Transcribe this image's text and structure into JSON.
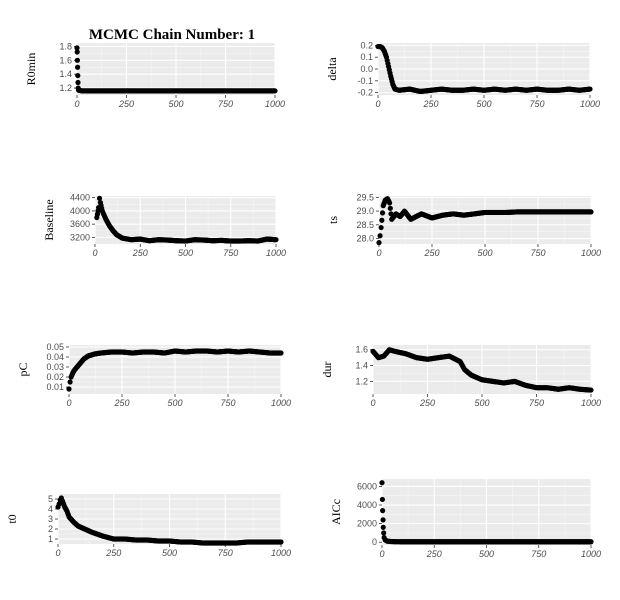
{
  "title": "MCMC Chain Number: 1",
  "chart_data": [
    {
      "type": "scatter",
      "ylabel": "R0min",
      "xlim": [
        0,
        1000
      ],
      "ylim": [
        1.1,
        1.85
      ],
      "xticks": [
        0,
        250,
        500,
        750,
        1000
      ],
      "yticks": [
        1.2,
        1.4,
        1.6,
        1.8
      ],
      "ytick_labels": [
        "1.2",
        "1.4",
        "1.6",
        "1.8"
      ],
      "grid": true,
      "points": [
        [
          0,
          1.78
        ],
        [
          1,
          1.72
        ],
        [
          2,
          1.6
        ],
        [
          3,
          1.5
        ],
        [
          4,
          1.38
        ],
        [
          5,
          1.28
        ],
        [
          6,
          1.2
        ],
        [
          8,
          1.17
        ],
        [
          10,
          1.17
        ],
        [
          25,
          1.16
        ],
        [
          50,
          1.16
        ],
        [
          100,
          1.16
        ],
        [
          150,
          1.16
        ],
        [
          200,
          1.16
        ],
        [
          250,
          1.16
        ],
        [
          300,
          1.16
        ],
        [
          350,
          1.16
        ],
        [
          400,
          1.16
        ],
        [
          450,
          1.16
        ],
        [
          500,
          1.16
        ],
        [
          550,
          1.16
        ],
        [
          600,
          1.16
        ],
        [
          650,
          1.16
        ],
        [
          700,
          1.16
        ],
        [
          750,
          1.16
        ],
        [
          800,
          1.16
        ],
        [
          850,
          1.16
        ],
        [
          900,
          1.16
        ],
        [
          950,
          1.16
        ],
        [
          1000,
          1.16
        ]
      ]
    },
    {
      "type": "scatter",
      "ylabel": "delta",
      "xlim": [
        0,
        1000
      ],
      "ylim": [
        -0.22,
        0.22
      ],
      "xticks": [
        0,
        250,
        500,
        750,
        1000
      ],
      "yticks": [
        -0.2,
        -0.1,
        0.0,
        0.1,
        0.2
      ],
      "ytick_labels": [
        "-0.2",
        "-0.1",
        "0.0",
        "0.1",
        "0.2"
      ],
      "grid": true,
      "points": [
        [
          0,
          0.19
        ],
        [
          10,
          0.19
        ],
        [
          20,
          0.18
        ],
        [
          30,
          0.15
        ],
        [
          40,
          0.1
        ],
        [
          50,
          0.02
        ],
        [
          60,
          -0.06
        ],
        [
          70,
          -0.13
        ],
        [
          80,
          -0.17
        ],
        [
          100,
          -0.18
        ],
        [
          150,
          -0.17
        ],
        [
          200,
          -0.19
        ],
        [
          250,
          -0.18
        ],
        [
          300,
          -0.17
        ],
        [
          350,
          -0.18
        ],
        [
          400,
          -0.18
        ],
        [
          450,
          -0.17
        ],
        [
          500,
          -0.18
        ],
        [
          550,
          -0.17
        ],
        [
          600,
          -0.18
        ],
        [
          650,
          -0.17
        ],
        [
          700,
          -0.18
        ],
        [
          750,
          -0.17
        ],
        [
          800,
          -0.18
        ],
        [
          850,
          -0.18
        ],
        [
          900,
          -0.17
        ],
        [
          950,
          -0.18
        ],
        [
          1000,
          -0.17
        ]
      ]
    },
    {
      "type": "scatter",
      "ylabel": "Baseline",
      "xlim": [
        0,
        1000
      ],
      "ylim": [
        3000,
        4450
      ],
      "xticks": [
        0,
        250,
        500,
        750,
        1000
      ],
      "yticks": [
        3200,
        3600,
        4000,
        4400
      ],
      "ytick_labels": [
        "3200",
        "3600",
        "4000",
        "4400"
      ],
      "grid": true,
      "points": [
        [
          10,
          3800
        ],
        [
          20,
          4100
        ],
        [
          25,
          4380
        ],
        [
          30,
          4250
        ],
        [
          40,
          4000
        ],
        [
          60,
          3750
        ],
        [
          80,
          3550
        ],
        [
          100,
          3400
        ],
        [
          120,
          3280
        ],
        [
          150,
          3180
        ],
        [
          200,
          3130
        ],
        [
          250,
          3150
        ],
        [
          300,
          3100
        ],
        [
          350,
          3130
        ],
        [
          400,
          3120
        ],
        [
          450,
          3100
        ],
        [
          500,
          3090
        ],
        [
          550,
          3130
        ],
        [
          600,
          3120
        ],
        [
          650,
          3100
        ],
        [
          700,
          3110
        ],
        [
          750,
          3090
        ],
        [
          800,
          3090
        ],
        [
          850,
          3100
        ],
        [
          900,
          3090
        ],
        [
          950,
          3150
        ],
        [
          1000,
          3130
        ]
      ]
    },
    {
      "type": "scatter",
      "ylabel": "ts",
      "xlim": [
        0,
        1000
      ],
      "ylim": [
        27.8,
        29.55
      ],
      "xticks": [
        0,
        250,
        500,
        750,
        1000
      ],
      "yticks": [
        28.0,
        28.5,
        29.0,
        29.5
      ],
      "ytick_labels": [
        "28.0",
        "28.5",
        "29.0",
        "29.5"
      ],
      "grid": true,
      "points": [
        [
          0,
          27.85
        ],
        [
          5,
          28.1
        ],
        [
          10,
          28.4
        ],
        [
          20,
          29.2
        ],
        [
          30,
          29.4
        ],
        [
          40,
          29.45
        ],
        [
          50,
          29.3
        ],
        [
          60,
          28.7
        ],
        [
          80,
          28.9
        ],
        [
          100,
          28.8
        ],
        [
          120,
          29.0
        ],
        [
          150,
          28.7
        ],
        [
          200,
          28.9
        ],
        [
          250,
          28.75
        ],
        [
          300,
          28.85
        ],
        [
          350,
          28.9
        ],
        [
          400,
          28.85
        ],
        [
          450,
          28.9
        ],
        [
          500,
          28.95
        ],
        [
          550,
          28.95
        ],
        [
          600,
          28.95
        ],
        [
          650,
          28.97
        ],
        [
          700,
          28.97
        ],
        [
          750,
          28.97
        ],
        [
          800,
          28.97
        ],
        [
          850,
          28.97
        ],
        [
          900,
          28.97
        ],
        [
          950,
          28.97
        ],
        [
          1000,
          28.97
        ]
      ]
    },
    {
      "type": "scatter",
      "ylabel": "pC",
      "xlim": [
        0,
        1000
      ],
      "ylim": [
        0.003,
        0.052
      ],
      "xticks": [
        0,
        250,
        500,
        750,
        1000
      ],
      "yticks": [
        0.01,
        0.02,
        0.03,
        0.04,
        0.05
      ],
      "ytick_labels": [
        "0.01",
        "0.02",
        "0.03",
        "0.04",
        "0.05"
      ],
      "grid": true,
      "points": [
        [
          0,
          0.008
        ],
        [
          5,
          0.015
        ],
        [
          10,
          0.02
        ],
        [
          20,
          0.025
        ],
        [
          30,
          0.028
        ],
        [
          50,
          0.033
        ],
        [
          70,
          0.038
        ],
        [
          90,
          0.041
        ],
        [
          120,
          0.043
        ],
        [
          150,
          0.044
        ],
        [
          200,
          0.045
        ],
        [
          250,
          0.045
        ],
        [
          300,
          0.044
        ],
        [
          350,
          0.045
        ],
        [
          400,
          0.045
        ],
        [
          450,
          0.044
        ],
        [
          500,
          0.046
        ],
        [
          550,
          0.045
        ],
        [
          600,
          0.046
        ],
        [
          650,
          0.046
        ],
        [
          700,
          0.045
        ],
        [
          750,
          0.046
        ],
        [
          800,
          0.045
        ],
        [
          850,
          0.046
        ],
        [
          900,
          0.045
        ],
        [
          950,
          0.044
        ],
        [
          1000,
          0.044
        ]
      ]
    },
    {
      "type": "scatter",
      "ylabel": "dur",
      "xlim": [
        0,
        1000
      ],
      "ylim": [
        1.04,
        1.66
      ],
      "xticks": [
        0,
        250,
        500,
        750,
        1000
      ],
      "yticks": [
        1.2,
        1.4,
        1.6
      ],
      "ytick_labels": [
        "1.2",
        "1.4",
        "1.6"
      ],
      "grid": true,
      "points": [
        [
          0,
          1.58
        ],
        [
          25,
          1.5
        ],
        [
          50,
          1.52
        ],
        [
          75,
          1.6
        ],
        [
          100,
          1.58
        ],
        [
          150,
          1.55
        ],
        [
          200,
          1.5
        ],
        [
          250,
          1.48
        ],
        [
          300,
          1.5
        ],
        [
          350,
          1.52
        ],
        [
          400,
          1.45
        ],
        [
          420,
          1.35
        ],
        [
          450,
          1.28
        ],
        [
          500,
          1.22
        ],
        [
          550,
          1.2
        ],
        [
          600,
          1.18
        ],
        [
          650,
          1.2
        ],
        [
          700,
          1.15
        ],
        [
          750,
          1.12
        ],
        [
          800,
          1.12
        ],
        [
          850,
          1.1
        ],
        [
          900,
          1.12
        ],
        [
          950,
          1.1
        ],
        [
          1000,
          1.09
        ]
      ]
    },
    {
      "type": "scatter",
      "ylabel": "t0",
      "xlim": [
        0,
        1000
      ],
      "ylim": [
        0.5,
        5.5
      ],
      "xticks": [
        0,
        250,
        500,
        750,
        1000
      ],
      "yticks": [
        1,
        2,
        3,
        4,
        5
      ],
      "ytick_labels": [
        "1",
        "2",
        "3",
        "4",
        "5"
      ],
      "grid": true,
      "points": [
        [
          0,
          4.2
        ],
        [
          5,
          4.5
        ],
        [
          10,
          4.9
        ],
        [
          15,
          5.1
        ],
        [
          20,
          4.8
        ],
        [
          30,
          4.2
        ],
        [
          40,
          3.8
        ],
        [
          50,
          3.2
        ],
        [
          70,
          2.7
        ],
        [
          90,
          2.3
        ],
        [
          120,
          2.0
        ],
        [
          150,
          1.7
        ],
        [
          200,
          1.3
        ],
        [
          250,
          1.0
        ],
        [
          300,
          1.0
        ],
        [
          350,
          0.9
        ],
        [
          400,
          0.9
        ],
        [
          450,
          0.8
        ],
        [
          500,
          0.8
        ],
        [
          550,
          0.7
        ],
        [
          600,
          0.7
        ],
        [
          650,
          0.6
        ],
        [
          700,
          0.6
        ],
        [
          750,
          0.6
        ],
        [
          800,
          0.6
        ],
        [
          850,
          0.7
        ],
        [
          900,
          0.7
        ],
        [
          950,
          0.7
        ],
        [
          1000,
          0.7
        ]
      ]
    },
    {
      "type": "scatter",
      "ylabel": "AICc",
      "xlim": [
        0,
        1000
      ],
      "ylim": [
        -300,
        6800
      ],
      "xticks": [
        0,
        250,
        500,
        750,
        1000
      ],
      "yticks": [
        0,
        2000,
        4000,
        6000
      ],
      "ytick_labels": [
        "0",
        "2000",
        "4000",
        "6000"
      ],
      "grid": true,
      "points": [
        [
          0,
          6400
        ],
        [
          2,
          4600
        ],
        [
          3,
          3400
        ],
        [
          5,
          2400
        ],
        [
          6,
          1600
        ],
        [
          8,
          1000
        ],
        [
          10,
          500
        ],
        [
          15,
          250
        ],
        [
          25,
          120
        ],
        [
          40,
          80
        ],
        [
          60,
          60
        ],
        [
          100,
          50
        ],
        [
          150,
          50
        ],
        [
          200,
          50
        ],
        [
          250,
          50
        ],
        [
          300,
          50
        ],
        [
          350,
          50
        ],
        [
          400,
          50
        ],
        [
          450,
          50
        ],
        [
          500,
          50
        ],
        [
          550,
          50
        ],
        [
          600,
          50
        ],
        [
          650,
          50
        ],
        [
          700,
          50
        ],
        [
          750,
          50
        ],
        [
          800,
          50
        ],
        [
          850,
          50
        ],
        [
          900,
          50
        ],
        [
          950,
          50
        ],
        [
          1000,
          50
        ]
      ]
    }
  ]
}
